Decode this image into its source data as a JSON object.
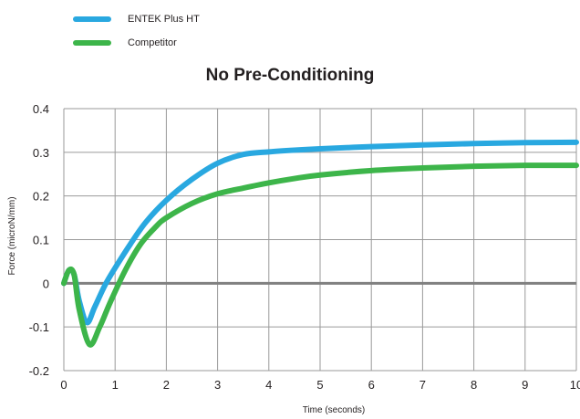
{
  "chart_data": {
    "type": "line",
    "title": "No Pre-Conditioning",
    "xlabel": "Time (seconds)",
    "ylabel": "Force (microN/mm)",
    "xlim": [
      0,
      10
    ],
    "ylim": [
      -0.2,
      0.4
    ],
    "x_ticks": [
      0,
      1,
      2,
      3,
      4,
      5,
      6,
      7,
      8,
      9,
      10
    ],
    "x_tick_labels": [
      "0",
      "1",
      "2",
      "3",
      "4",
      "5",
      "6",
      "7",
      "8",
      "9",
      "10"
    ],
    "y_ticks": [
      0.4,
      0.3,
      0.2,
      0.1,
      0,
      -0.1,
      -0.2
    ],
    "y_tick_labels": [
      "0.4",
      "0.3",
      "0.2",
      "0.1",
      "0",
      "-0.1",
      "-0.2"
    ],
    "grid": true,
    "legend_position": "top-left",
    "zero_line_color": "#808080",
    "series": [
      {
        "name": "ENTEK Plus HT",
        "color": "#29a8e0",
        "x": [
          0,
          0.1,
          0.2,
          0.3,
          0.45,
          0.6,
          0.8,
          1.0,
          1.3,
          1.6,
          2.0,
          2.5,
          3.0,
          3.5,
          4.0,
          4.5,
          5.0,
          6.0,
          7.0,
          8.0,
          9.0,
          10.0
        ],
        "y": [
          0.0,
          0.03,
          0.02,
          -0.04,
          -0.09,
          -0.055,
          -0.005,
          0.035,
          0.09,
          0.14,
          0.19,
          0.238,
          0.275,
          0.295,
          0.301,
          0.305,
          0.308,
          0.313,
          0.317,
          0.32,
          0.322,
          0.323
        ]
      },
      {
        "name": "Competitor",
        "color": "#3db54a",
        "x": [
          0,
          0.1,
          0.2,
          0.3,
          0.5,
          0.7,
          0.9,
          1.2,
          1.5,
          1.8,
          2.0,
          2.5,
          3.0,
          3.5,
          4.0,
          4.5,
          5.0,
          6.0,
          7.0,
          8.0,
          9.0,
          10.0
        ],
        "y": [
          0.0,
          0.03,
          0.02,
          -0.06,
          -0.14,
          -0.1,
          -0.045,
          0.03,
          0.09,
          0.13,
          0.15,
          0.183,
          0.205,
          0.218,
          0.23,
          0.24,
          0.248,
          0.258,
          0.264,
          0.268,
          0.27,
          0.27
        ]
      }
    ]
  }
}
